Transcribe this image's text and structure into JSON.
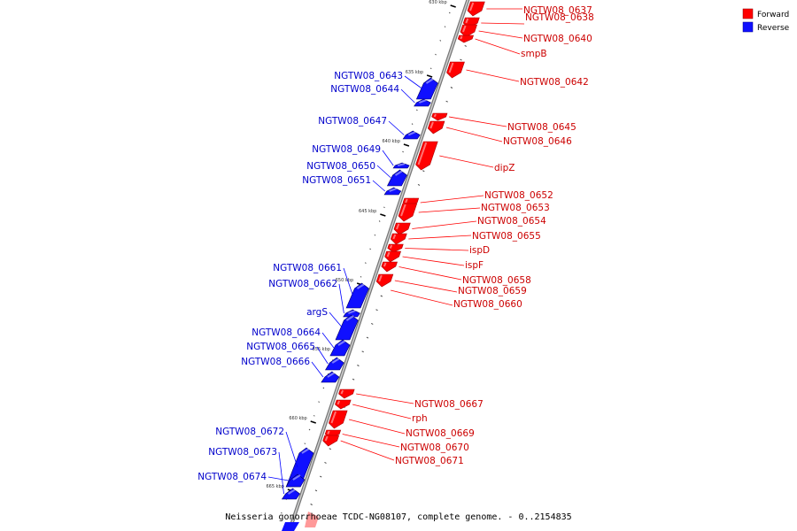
{
  "legend": {
    "forward_label": "Forward",
    "reverse_label": "Reverse",
    "forward_color": "#ff0000",
    "reverse_color": "#1010ff"
  },
  "caption": "Neisseria gonorrhoeae TCDC-NG08107, complete genome. - 0..2154835",
  "ticks": [
    "630 kbp",
    "635 kbp",
    "640 kbp",
    "645 kbp",
    "650 kbp",
    "655 kbp",
    "660 kbp",
    "665 kbp"
  ],
  "forward_genes": [
    "NGTW08_0637",
    "NGTW08_0638",
    "NGTW08_0640",
    "smpB",
    "NGTW08_0642",
    "NGTW08_0645",
    "NGTW08_0646",
    "dipZ",
    "NGTW08_0652",
    "NGTW08_0653",
    "NGTW08_0654",
    "NGTW08_0655",
    "ispD",
    "ispF",
    "NGTW08_0658",
    "NGTW08_0659",
    "NGTW08_0660",
    "NGTW08_0667",
    "rph",
    "NGTW08_0669",
    "NGTW08_0670",
    "NGTW08_0671"
  ],
  "reverse_genes": [
    "NGTW08_0643",
    "NGTW08_0644",
    "NGTW08_0647",
    "NGTW08_0649",
    "NGTW08_0650",
    "NGTW08_0651",
    "NGTW08_0661",
    "NGTW08_0662",
    "argS",
    "NGTW08_0664",
    "NGTW08_0665",
    "NGTW08_0666",
    "NGTW08_0672",
    "NGTW08_0673",
    "NGTW08_0674"
  ]
}
